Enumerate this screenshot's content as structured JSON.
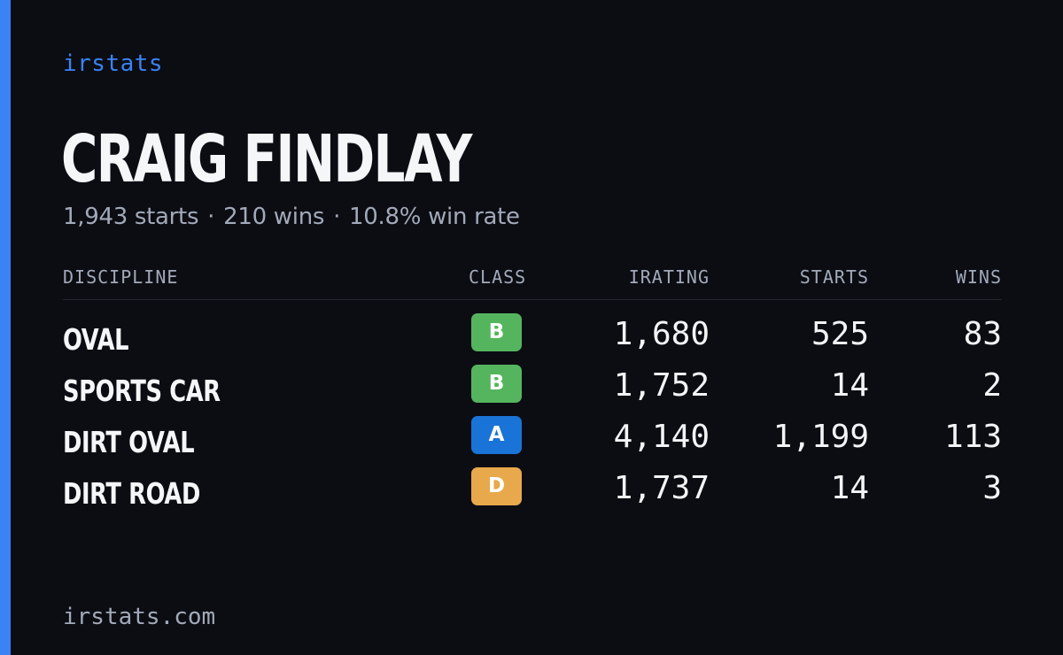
{
  "brand": "irstats",
  "driver": {
    "name": "CRAIG FINDLAY",
    "starts": "1,943 starts",
    "wins": "210 wins",
    "win_rate": "10.8% win rate",
    "separator": "·"
  },
  "table": {
    "headers": {
      "discipline": "DISCIPLINE",
      "class": "CLASS",
      "irating": "IRATING",
      "starts": "STARTS",
      "wins": "WINS"
    },
    "rows": [
      {
        "discipline": "OVAL",
        "class": "B",
        "class_color": "#55b55e",
        "irating": "1,680",
        "starts": "525",
        "wins": "83"
      },
      {
        "discipline": "SPORTS CAR",
        "class": "B",
        "class_color": "#55b55e",
        "irating": "1,752",
        "starts": "14",
        "wins": "2"
      },
      {
        "discipline": "DIRT OVAL",
        "class": "A",
        "class_color": "#1a73d6",
        "irating": "4,140",
        "starts": "1,199",
        "wins": "113"
      },
      {
        "discipline": "DIRT ROAD",
        "class": "D",
        "class_color": "#e8a94c",
        "irating": "1,737",
        "starts": "14",
        "wins": "3"
      }
    ]
  },
  "footer": {
    "url": "irstats.com"
  },
  "colors": {
    "accent": "#3b82f6",
    "background": "#0b0d13",
    "muted_text": "#a2a9b8"
  }
}
